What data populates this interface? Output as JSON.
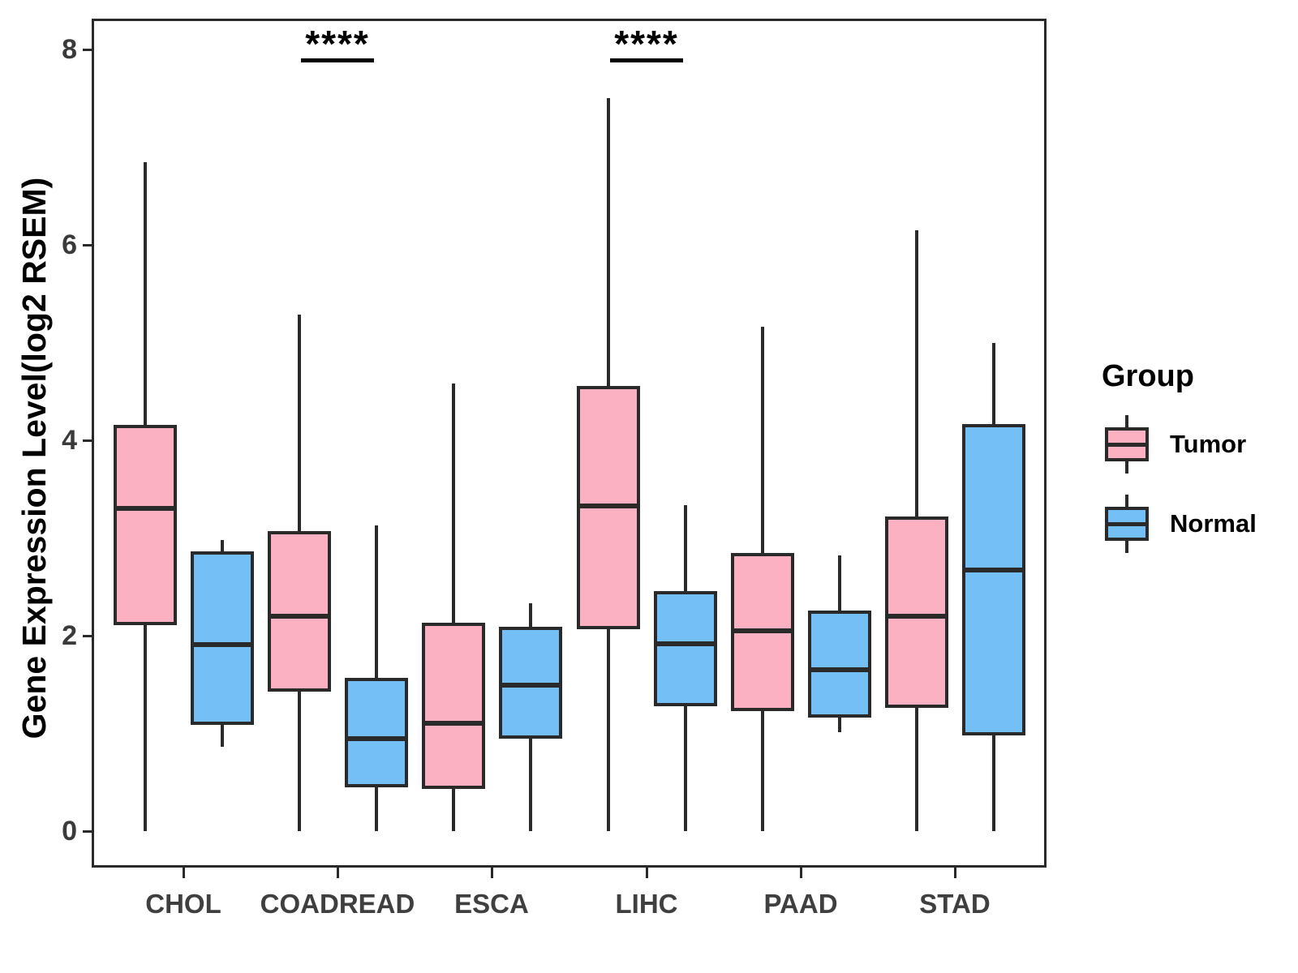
{
  "figure": {
    "y_axis_title": "Gene Expression Level(log2 RSEM)",
    "legend": {
      "title": "Group",
      "items": [
        {
          "label": "Tumor",
          "color": "#FCB1C3"
        },
        {
          "label": "Normal",
          "color": "#74C0F6"
        }
      ]
    }
  },
  "chart_data": {
    "type": "boxplot",
    "title": "",
    "xlabel": "",
    "ylabel": "Gene Expression Level(log2 RSEM)",
    "categories": [
      "CHOL",
      "COADREAD",
      "ESCA",
      "LIHC",
      "PAAD",
      "STAD"
    ],
    "y_ticks": [
      0,
      2,
      4,
      6,
      8
    ],
    "ylim": [
      -0.4,
      8.3
    ],
    "grid": false,
    "legend_position": "right",
    "legend_title": "Group",
    "series": [
      {
        "name": "Tumor",
        "color": "#FCB1C3",
        "boxes": [
          {
            "category": "CHOL",
            "whisker_low": 0.0,
            "q1": 2.11,
            "median": 3.3,
            "q3": 4.16,
            "whisker_high": 6.85
          },
          {
            "category": "COADREAD",
            "whisker_low": 0.0,
            "q1": 1.43,
            "median": 2.2,
            "q3": 3.07,
            "whisker_high": 5.29
          },
          {
            "category": "ESCA",
            "whisker_low": 0.0,
            "q1": 0.43,
            "median": 1.1,
            "q3": 2.13,
            "whisker_high": 4.58
          },
          {
            "category": "LIHC",
            "whisker_low": 0.0,
            "q1": 2.07,
            "median": 3.33,
            "q3": 4.56,
            "whisker_high": 7.5
          },
          {
            "category": "PAAD",
            "whisker_low": 0.0,
            "q1": 1.23,
            "median": 2.05,
            "q3": 2.85,
            "whisker_high": 5.16
          },
          {
            "category": "STAD",
            "whisker_low": 0.0,
            "q1": 1.26,
            "median": 2.2,
            "q3": 3.22,
            "whisker_high": 6.15
          }
        ]
      },
      {
        "name": "Normal",
        "color": "#74C0F6",
        "boxes": [
          {
            "category": "CHOL",
            "whisker_low": 0.86,
            "q1": 1.09,
            "median": 1.91,
            "q3": 2.86,
            "whisker_high": 2.98
          },
          {
            "category": "COADREAD",
            "whisker_low": 0.0,
            "q1": 0.45,
            "median": 0.95,
            "q3": 1.57,
            "whisker_high": 3.13
          },
          {
            "category": "ESCA",
            "whisker_low": 0.0,
            "q1": 0.95,
            "median": 1.49,
            "q3": 2.09,
            "whisker_high": 2.33
          },
          {
            "category": "LIHC",
            "whisker_low": 0.0,
            "q1": 1.28,
            "median": 1.92,
            "q3": 2.46,
            "whisker_high": 3.34
          },
          {
            "category": "PAAD",
            "whisker_low": 1.01,
            "q1": 1.16,
            "median": 1.65,
            "q3": 2.26,
            "whisker_high": 2.82
          },
          {
            "category": "STAD",
            "whisker_low": 0.0,
            "q1": 0.98,
            "median": 2.67,
            "q3": 4.17,
            "whisker_high": 5.0
          }
        ]
      }
    ],
    "annotations": [
      {
        "category": "COADREAD",
        "text": "****",
        "meaning": "significance"
      },
      {
        "category": "LIHC",
        "text": "****",
        "meaning": "significance"
      }
    ]
  }
}
